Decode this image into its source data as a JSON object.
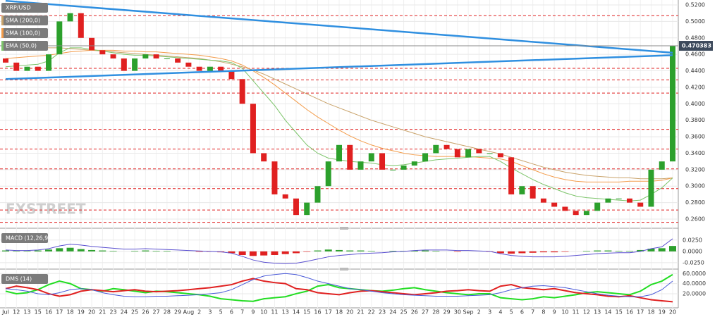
{
  "chart_data": [
    {
      "type": "candlestick",
      "title": "XRP/USD",
      "categories": [
        "Jul",
        "12",
        "13",
        "15",
        "16",
        "17",
        "18",
        "19",
        "20",
        "21",
        "23",
        "24",
        "25",
        "26",
        "27",
        "28",
        "29",
        "Aug",
        "2",
        "3",
        "5",
        "6",
        "7",
        "9",
        "10",
        "11",
        "13",
        "14",
        "15",
        "16",
        "17",
        "18",
        "20",
        "21",
        "22",
        "23",
        "24",
        "25",
        "26",
        "27",
        "28",
        "29",
        "30",
        "Sep",
        "2",
        "3",
        "4",
        "5",
        "6",
        "7",
        "8",
        "9",
        "10",
        "11",
        "12",
        "13",
        "14",
        "15",
        "16",
        "17",
        "18",
        "19",
        "20"
      ],
      "open": [
        0.455,
        0.45,
        0.44,
        0.445,
        0.44,
        0.46,
        0.5,
        0.51,
        0.48,
        0.465,
        0.46,
        0.455,
        0.44,
        0.455,
        0.46,
        0.455,
        0.455,
        0.45,
        0.445,
        0.44,
        0.445,
        0.44,
        0.43,
        0.4,
        0.34,
        0.33,
        0.29,
        0.285,
        0.265,
        0.28,
        0.3,
        0.33,
        0.35,
        0.32,
        0.33,
        0.34,
        0.32,
        0.32,
        0.325,
        0.33,
        0.34,
        0.35,
        0.345,
        0.335,
        0.345,
        0.34,
        0.34,
        0.335,
        0.29,
        0.3,
        0.285,
        0.28,
        0.275,
        0.27,
        0.265,
        0.27,
        0.28,
        0.285,
        0.285,
        0.28,
        0.275,
        0.32,
        0.33
      ],
      "close": [
        0.45,
        0.44,
        0.445,
        0.44,
        0.46,
        0.5,
        0.51,
        0.48,
        0.465,
        0.46,
        0.455,
        0.44,
        0.455,
        0.46,
        0.455,
        0.455,
        0.45,
        0.445,
        0.44,
        0.445,
        0.44,
        0.43,
        0.4,
        0.34,
        0.33,
        0.29,
        0.285,
        0.265,
        0.28,
        0.3,
        0.33,
        0.35,
        0.32,
        0.33,
        0.34,
        0.32,
        0.32,
        0.325,
        0.33,
        0.34,
        0.35,
        0.345,
        0.335,
        0.345,
        0.34,
        0.34,
        0.335,
        0.29,
        0.3,
        0.285,
        0.28,
        0.275,
        0.27,
        0.265,
        0.27,
        0.28,
        0.285,
        0.285,
        0.28,
        0.275,
        0.32,
        0.33,
        0.47
      ],
      "up_color": "#2ca02c",
      "down_color": "#e02020",
      "series": [
        {
          "name": "SMA (200,0)",
          "color": "#c9a36b",
          "values": [
            0.472,
            0.471,
            0.47,
            0.469,
            0.468,
            0.468,
            0.467,
            0.466,
            0.465,
            0.464,
            0.463,
            0.462,
            0.461,
            0.46,
            0.459,
            0.458,
            0.457,
            0.456,
            0.455,
            0.453,
            0.451,
            0.448,
            0.445,
            0.441,
            0.436,
            0.43,
            0.424,
            0.418,
            0.412,
            0.406,
            0.4,
            0.395,
            0.39,
            0.385,
            0.38,
            0.376,
            0.372,
            0.368,
            0.364,
            0.36,
            0.357,
            0.354,
            0.351,
            0.348,
            0.345,
            0.342,
            0.339,
            0.335,
            0.331,
            0.327,
            0.323,
            0.32,
            0.317,
            0.315,
            0.313,
            0.312,
            0.311,
            0.31,
            0.31,
            0.309,
            0.309,
            0.309,
            0.31
          ]
        },
        {
          "name": "SMA (100,0)",
          "color": "#f39c4a",
          "values": [
            0.455,
            0.456,
            0.457,
            0.458,
            0.459,
            0.461,
            0.463,
            0.464,
            0.465,
            0.465,
            0.465,
            0.464,
            0.464,
            0.463,
            0.463,
            0.462,
            0.461,
            0.46,
            0.459,
            0.457,
            0.455,
            0.452,
            0.447,
            0.44,
            0.432,
            0.423,
            0.413,
            0.403,
            0.393,
            0.384,
            0.376,
            0.368,
            0.361,
            0.355,
            0.35,
            0.346,
            0.343,
            0.34,
            0.338,
            0.337,
            0.336,
            0.336,
            0.336,
            0.336,
            0.335,
            0.334,
            0.333,
            0.33,
            0.325,
            0.32,
            0.315,
            0.311,
            0.308,
            0.306,
            0.305,
            0.305,
            0.305,
            0.305,
            0.306,
            0.306,
            0.306,
            0.307,
            0.31
          ]
        },
        {
          "name": "EMA (50,0)",
          "color": "#7cc46a",
          "values": [
            0.445,
            0.446,
            0.447,
            0.448,
            0.452,
            0.462,
            0.468,
            0.468,
            0.466,
            0.464,
            0.462,
            0.46,
            0.459,
            0.459,
            0.458,
            0.457,
            0.456,
            0.455,
            0.454,
            0.453,
            0.452,
            0.45,
            0.443,
            0.428,
            0.413,
            0.398,
            0.38,
            0.365,
            0.35,
            0.34,
            0.334,
            0.332,
            0.33,
            0.329,
            0.328,
            0.326,
            0.325,
            0.326,
            0.328,
            0.33,
            0.332,
            0.333,
            0.334,
            0.335,
            0.336,
            0.336,
            0.33,
            0.322,
            0.315,
            0.308,
            0.302,
            0.297,
            0.292,
            0.288,
            0.286,
            0.285,
            0.284,
            0.283,
            0.282,
            0.283,
            0.29,
            0.298,
            0.31
          ]
        }
      ],
      "levels": [
        0.507,
        0.443,
        0.429,
        0.413,
        0.369,
        0.345,
        0.321,
        0.297,
        0.271,
        0.256
      ],
      "level_color": "#e02020",
      "trendlines": [
        {
          "start": 0.525,
          "end": 0.462
        },
        {
          "start": 0.43,
          "end": 0.459
        }
      ],
      "trendline_color": "#2f8fe0",
      "last_price": 0.470383,
      "watermark": "FXSTREET",
      "ylim": [
        0.2506,
        0.526
      ],
      "yticks": [
        {
          "value": 0.26,
          "label": "0.2600"
        },
        {
          "value": 0.28,
          "label": "0.2800"
        },
        {
          "value": 0.3,
          "label": "0.3000"
        },
        {
          "value": 0.32,
          "label": "0.3200"
        },
        {
          "value": 0.34,
          "label": "0.3400"
        },
        {
          "value": 0.36,
          "label": "0.3600"
        },
        {
          "value": 0.38,
          "label": "0.3800"
        },
        {
          "value": 0.4,
          "label": "0.4000"
        },
        {
          "value": 0.42,
          "label": "0.4200"
        },
        {
          "value": 0.44,
          "label": "0.4400"
        },
        {
          "value": 0.46,
          "label": "0.4600"
        },
        {
          "value": 0.48,
          "label": "0.4800"
        },
        {
          "value": 0.5,
          "label": "0.5000"
        },
        {
          "value": 0.52,
          "label": "0.5200"
        }
      ],
      "grid": true
    },
    {
      "type": "macd",
      "title": "MACD (12,26,9)",
      "histogram": [
        0.002,
        0.001,
        0.001,
        0.002,
        0.004,
        0.007,
        0.008,
        0.005,
        0.003,
        0.002,
        0.001,
        0,
        0.001,
        0.002,
        0.001,
        0.001,
        0,
        0,
        -0.001,
        -0.001,
        -0.002,
        -0.004,
        -0.008,
        -0.01,
        -0.009,
        -0.008,
        -0.006,
        -0.004,
        -0.001,
        0.002,
        0.004,
        0.003,
        0.002,
        0.002,
        0.001,
        0,
        0.001,
        0.001,
        0.002,
        0.002,
        0.001,
        0,
        -0.001,
        0,
        0,
        -0.001,
        -0.004,
        -0.005,
        -0.004,
        -0.003,
        -0.002,
        -0.002,
        -0.001,
        0,
        0.001,
        0.002,
        0.002,
        0.001,
        0.001,
        0.003,
        0.006,
        0.007,
        0.012
      ],
      "macd": [
        0.003,
        0.002,
        0.002,
        0.003,
        0.006,
        0.012,
        0.016,
        0.014,
        0.011,
        0.009,
        0.007,
        0.005,
        0.005,
        0.006,
        0.005,
        0.004,
        0.003,
        0.002,
        0.001,
        0,
        -0.001,
        -0.004,
        -0.011,
        -0.019,
        -0.024,
        -0.026,
        -0.027,
        -0.026,
        -0.022,
        -0.017,
        -0.012,
        -0.009,
        -0.007,
        -0.005,
        -0.004,
        -0.003,
        -0.001,
        0,
        0.002,
        0.003,
        0.003,
        0.003,
        0.002,
        0.002,
        0.001,
        0,
        -0.005,
        -0.009,
        -0.011,
        -0.012,
        -0.012,
        -0.012,
        -0.011,
        -0.009,
        -0.007,
        -0.005,
        -0.004,
        -0.003,
        -0.003,
        0,
        0.006,
        0.01,
        0.028
      ],
      "up_color": "#2ca02c",
      "down_color": "#e02020",
      "line_color": "#5a4fd0",
      "ylim": [
        -0.036,
        0.048
      ],
      "yticks": [
        {
          "value": -0.025,
          "label": "-0.0250"
        },
        {
          "value": 0,
          "label": "0.0000"
        },
        {
          "value": 0.025,
          "label": "0.0250"
        }
      ]
    },
    {
      "type": "line",
      "title": "DMS (14)",
      "series": [
        {
          "color": "#22dd22",
          "values": [
            25,
            20,
            22,
            28,
            38,
            45,
            40,
            30,
            28,
            25,
            30,
            28,
            25,
            22,
            25,
            24,
            22,
            20,
            18,
            15,
            10,
            8,
            6,
            5,
            10,
            12,
            14,
            20,
            25,
            35,
            38,
            32,
            30,
            28,
            26,
            25,
            27,
            30,
            32,
            28,
            25,
            22,
            20,
            18,
            20,
            20,
            12,
            10,
            8,
            10,
            14,
            12,
            15,
            18,
            22,
            24,
            22,
            20,
            18,
            25,
            38,
            45,
            58
          ]
        },
        {
          "color": "#e02020",
          "values": [
            30,
            35,
            32,
            28,
            20,
            15,
            18,
            25,
            28,
            26,
            24,
            26,
            28,
            25,
            24,
            25,
            26,
            28,
            30,
            32,
            35,
            38,
            45,
            50,
            45,
            42,
            40,
            30,
            28,
            22,
            20,
            18,
            22,
            25,
            26,
            24,
            22,
            20,
            18,
            20,
            22,
            25,
            26,
            28,
            26,
            25,
            35,
            38,
            32,
            30,
            28,
            30,
            26,
            22,
            20,
            18,
            15,
            14,
            16,
            12,
            8,
            6,
            4
          ]
        },
        {
          "color": "#4a5ad8",
          "values": [
            30,
            28,
            25,
            20,
            18,
            22,
            28,
            30,
            28,
            22,
            18,
            15,
            14,
            14,
            15,
            15,
            16,
            17,
            18,
            20,
            22,
            28,
            38,
            48,
            55,
            58,
            60,
            58,
            52,
            45,
            40,
            35,
            30,
            28,
            25,
            22,
            20,
            18,
            17,
            16,
            15,
            15,
            15,
            16,
            17,
            18,
            22,
            28,
            32,
            35,
            36,
            34,
            32,
            28,
            24,
            20,
            17,
            15,
            14,
            14,
            18,
            28,
            45
          ]
        }
      ],
      "ylim": [
        -8,
        66
      ],
      "yticks": [
        {
          "value": 20,
          "label": "20.0000"
        },
        {
          "value": 40,
          "label": "40.0000"
        },
        {
          "value": 60,
          "label": "60.0000"
        }
      ]
    }
  ]
}
